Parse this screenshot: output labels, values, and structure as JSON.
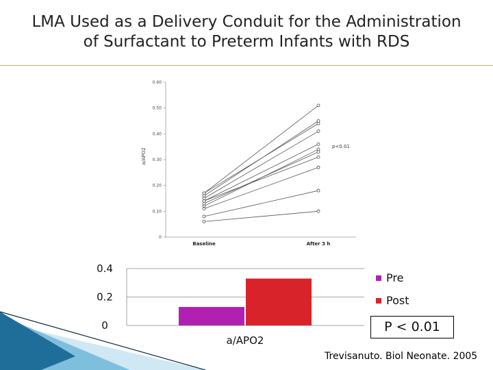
{
  "slide": {
    "title_line1": "LMA Used as a Delivery Conduit for the Administration",
    "title_line2": "of Surfactant to Preterm Infants with RDS",
    "p_box": "P < 0.01",
    "citation": "Trevisanuto.  Biol Neonate. 2005"
  },
  "chart_data": [
    {
      "type": "line",
      "ylabel": "a/APO2",
      "categories": [
        "Baseline",
        "After 3 h"
      ],
      "y_ticks": [
        "0",
        "0.10",
        "0.20",
        "0.30",
        "0.40",
        "0.50",
        "0.60"
      ],
      "ylim": [
        0,
        0.6
      ],
      "annotation": "p<0.01",
      "line_color": "#555555",
      "series": [
        {
          "values": [
            0.17,
            0.51
          ]
        },
        {
          "values": [
            0.16,
            0.45
          ]
        },
        {
          "values": [
            0.17,
            0.44
          ]
        },
        {
          "values": [
            0.15,
            0.41
          ]
        },
        {
          "values": [
            0.14,
            0.36
          ]
        },
        {
          "values": [
            0.12,
            0.34
          ]
        },
        {
          "values": [
            0.13,
            0.33
          ]
        },
        {
          "values": [
            0.14,
            0.31
          ]
        },
        {
          "values": [
            0.11,
            0.27
          ]
        },
        {
          "values": [
            0.08,
            0.18
          ]
        },
        {
          "values": [
            0.06,
            0.1
          ]
        }
      ]
    },
    {
      "type": "bar",
      "categories": [
        "a/APO2"
      ],
      "y_ticks": [
        "0",
        "0.2",
        "0.4"
      ],
      "ylim": [
        0,
        0.4
      ],
      "series": [
        {
          "name": "Pre",
          "values": [
            0.13
          ],
          "color": "#b220b2"
        },
        {
          "name": "Post",
          "values": [
            0.33
          ],
          "color": "#d9232a"
        }
      ],
      "legend": "right"
    }
  ]
}
